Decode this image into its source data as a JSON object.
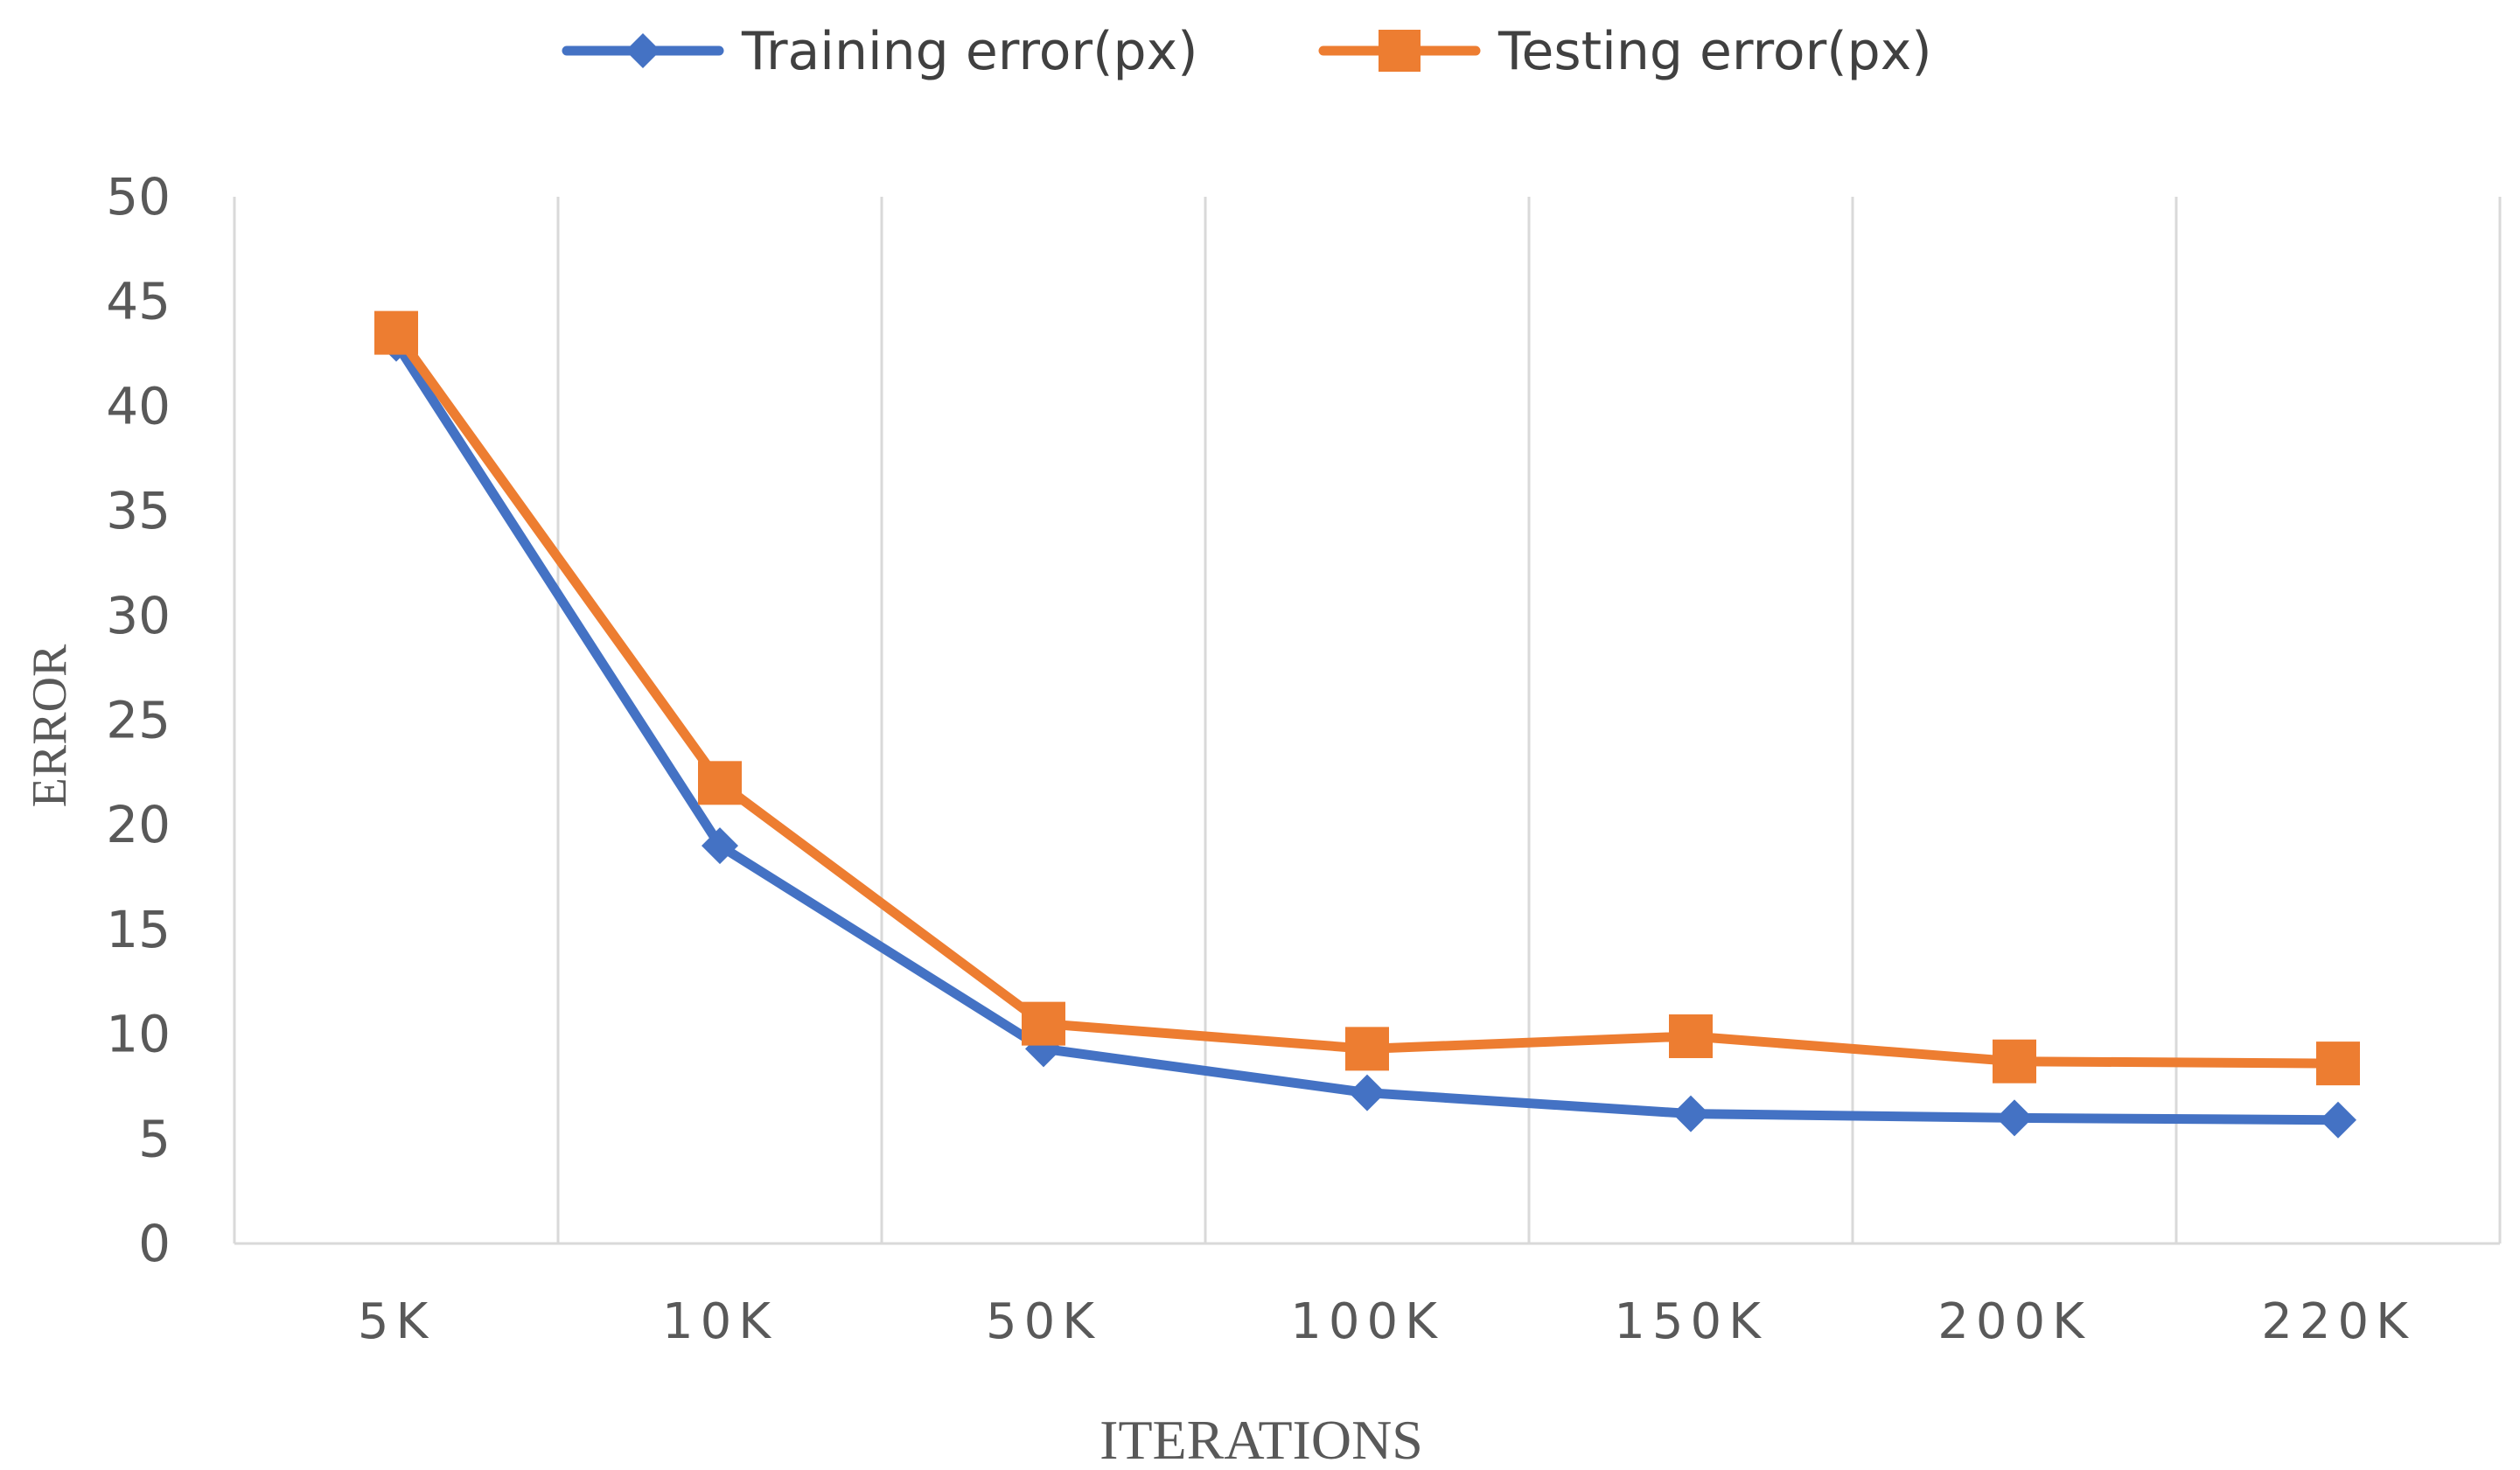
{
  "chart_data": {
    "type": "line",
    "title": "",
    "xlabel": "ITERATIONS",
    "ylabel": "ERROR",
    "categories": [
      "5K",
      "10K",
      "50K",
      "100K",
      "150K",
      "200K",
      "220K"
    ],
    "ylim": [
      0,
      50
    ],
    "yticks": [
      0,
      5,
      10,
      15,
      20,
      25,
      30,
      35,
      40,
      45,
      50
    ],
    "grid": "vertical",
    "legend_position": "top-center",
    "series": [
      {
        "name": "Training error(px)",
        "values": [
          43.0,
          19.0,
          9.3,
          7.2,
          6.2,
          6.0,
          5.9
        ],
        "color": "#4472C4",
        "marker": "diamond"
      },
      {
        "name": "Testing error(px)",
        "values": [
          43.5,
          22.0,
          10.5,
          9.3,
          9.9,
          8.7,
          8.6
        ],
        "color": "#ED7D31",
        "marker": "square"
      }
    ]
  }
}
